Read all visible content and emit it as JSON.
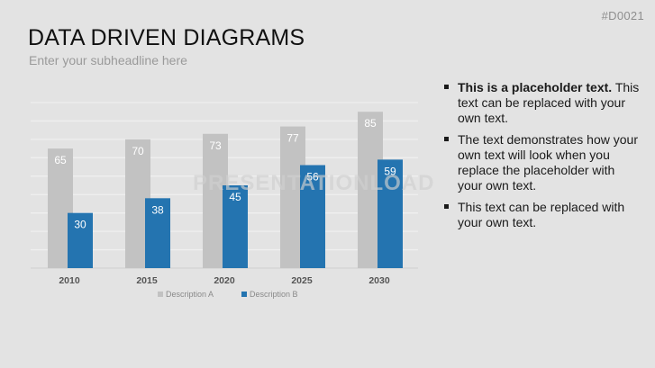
{
  "slide": {
    "id": "#D0021",
    "title": "DATA DRIVEN DIAGRAMS",
    "subtitle": "Enter your subheadline here"
  },
  "watermark": "PRESENTATIONLOAD",
  "bullets": [
    {
      "bold": "This is a placeholder text.",
      "text": "This text can be replaced with your own text."
    },
    {
      "bold": "",
      "text": "The text demonstrates how your own text will look when you replace the placeholder with your own text."
    },
    {
      "bold": "",
      "text": "This text can be replaced with your own text."
    }
  ],
  "colors": {
    "series_a": "#c2c2c2",
    "series_b": "#2474b0",
    "gridline": "#efefef"
  },
  "chart_data": {
    "type": "bar",
    "categories": [
      "2010",
      "2015",
      "2020",
      "2025",
      "2030"
    ],
    "series": [
      {
        "name": "Description A",
        "values": [
          65,
          70,
          73,
          77,
          85
        ]
      },
      {
        "name": "Description B",
        "values": [
          30,
          38,
          45,
          56,
          59
        ]
      }
    ],
    "ylim": [
      0,
      90
    ],
    "grid": true,
    "legend": "bottom"
  }
}
